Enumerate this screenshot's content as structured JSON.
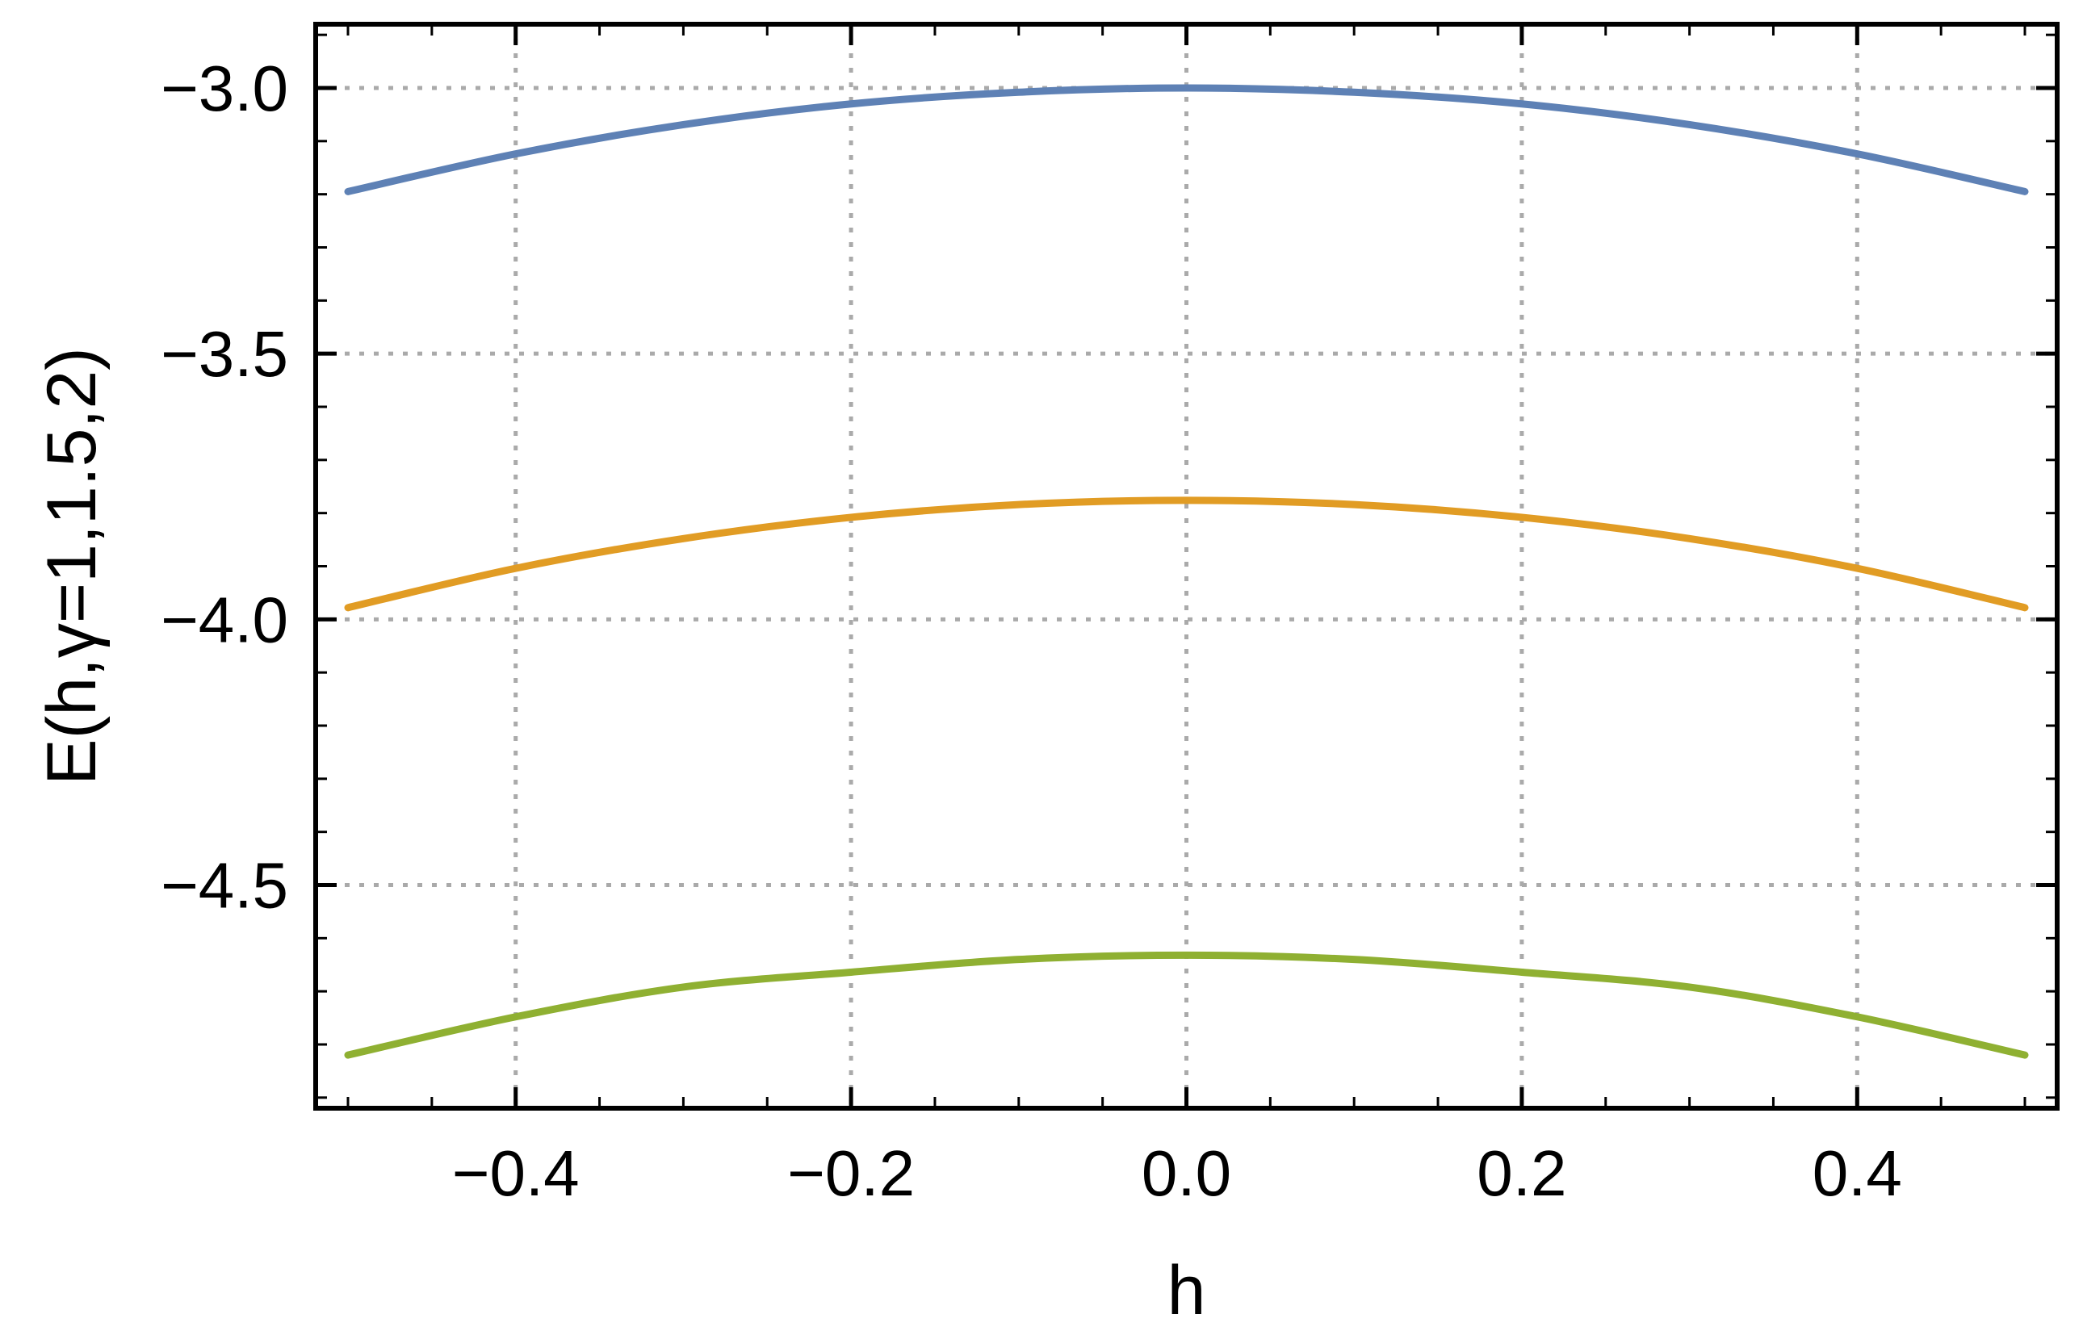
{
  "chart_data": {
    "type": "line",
    "xlabel": "h",
    "ylabel": "E(h,γ=1,1.5,2)",
    "xlim": [
      -0.5,
      0.5
    ],
    "ylim": [
      -4.92,
      -2.88
    ],
    "grid": true,
    "x_ticks": [
      -0.4,
      -0.2,
      0.0,
      0.2,
      0.4
    ],
    "x_tick_labels": [
      "−0.4",
      "−0.2",
      "0.0",
      "0.2",
      "0.4"
    ],
    "y_ticks": [
      -3.0,
      -3.5,
      -4.0,
      -4.5
    ],
    "y_tick_labels": [
      "−3.0",
      "−3.5",
      "−4.0",
      "−4.5"
    ],
    "x": [
      -0.5,
      -0.4,
      -0.3,
      -0.2,
      -0.1,
      0.0,
      0.1,
      0.2,
      0.3,
      0.4,
      0.5
    ],
    "series": [
      {
        "color": "#5e81b5",
        "values": [
          -3.195,
          -3.124,
          -3.069,
          -3.03,
          -3.008,
          -3.0,
          -3.008,
          -3.03,
          -3.069,
          -3.124,
          -3.195
        ]
      },
      {
        "color": "#e19c24",
        "values": [
          -3.978,
          -3.904,
          -3.848,
          -3.808,
          -3.784,
          -3.776,
          -3.784,
          -3.808,
          -3.848,
          -3.904,
          -3.978
        ]
      },
      {
        "color": "#8fb032",
        "values": [
          -4.82,
          -4.748,
          -4.692,
          -4.664,
          -4.64,
          -4.632,
          -4.64,
          -4.664,
          -4.692,
          -4.748,
          -4.82
        ]
      }
    ]
  }
}
